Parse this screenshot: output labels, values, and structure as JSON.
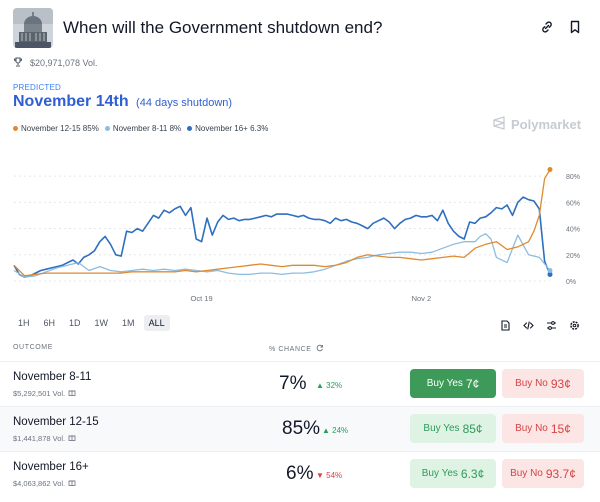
{
  "header": {
    "title": "When will the Government shutdown end?"
  },
  "volume": "$20,971,078 Vol.",
  "prediction": {
    "label": "PREDICTED",
    "value": "November 14th",
    "detail": "(44 days shutdown)"
  },
  "legend": [
    {
      "name": "November 12-15 85%",
      "color": "#e08a2e"
    },
    {
      "name": "November 8-11 8%",
      "color": "#8cbde0"
    },
    {
      "name": "November 16+ 6.3%",
      "color": "#2f6fc0"
    }
  ],
  "brand": "Polymarket",
  "chart_data": {
    "type": "line",
    "x_ticks": [
      "Oct 19",
      "Nov 2"
    ],
    "y_ticks": [
      "80%",
      "60%",
      "40%",
      "20%",
      "0%"
    ],
    "ylim": [
      0,
      90
    ],
    "grid": "horizontal-dashed",
    "series": [
      {
        "name": "November 12-15",
        "color": "#e08a2e",
        "x": [
          0,
          2,
          4,
          6,
          8,
          10,
          12,
          14,
          16,
          18,
          20,
          22,
          24,
          26,
          28,
          30,
          32,
          34,
          36,
          38,
          40,
          42,
          44,
          46,
          48,
          50,
          52,
          54,
          56,
          58,
          60,
          62,
          64,
          66,
          68,
          70,
          72,
          74,
          76,
          78,
          80,
          82,
          84,
          86,
          88,
          90,
          92,
          94,
          96,
          97,
          98,
          99,
          100
        ],
        "y": [
          12,
          4,
          5,
          6,
          6,
          6,
          6,
          6,
          6,
          6,
          6,
          7,
          7,
          7,
          7,
          7,
          8,
          7,
          8,
          9,
          10,
          11,
          12,
          13,
          12,
          11,
          12,
          12,
          12,
          11,
          12,
          14,
          18,
          20,
          19,
          18,
          18,
          17,
          16,
          17,
          18,
          19,
          18,
          25,
          28,
          30,
          24,
          26,
          30,
          38,
          50,
          78,
          85
        ]
      },
      {
        "name": "November 8-11",
        "color": "#8cbde0",
        "x": [
          0,
          2,
          4,
          6,
          8,
          10,
          12,
          14,
          16,
          18,
          20,
          22,
          24,
          26,
          28,
          30,
          32,
          34,
          36,
          38,
          40,
          42,
          44,
          46,
          48,
          50,
          52,
          54,
          56,
          58,
          60,
          62,
          64,
          66,
          68,
          70,
          72,
          74,
          76,
          78,
          80,
          82,
          84,
          86,
          87,
          88,
          89,
          90,
          92,
          94,
          96,
          98,
          100
        ],
        "y": [
          8,
          3,
          4,
          7,
          10,
          12,
          14,
          8,
          11,
          8,
          7,
          8,
          9,
          8,
          9,
          8,
          9,
          8,
          7,
          8,
          6,
          5,
          5,
          6,
          6,
          5,
          6,
          6,
          7,
          9,
          12,
          15,
          17,
          18,
          20,
          21,
          22,
          22,
          21,
          22,
          25,
          28,
          30,
          30,
          34,
          36,
          32,
          18,
          14,
          35,
          20,
          18,
          8
        ]
      },
      {
        "name": "November 16+",
        "color": "#2f6fc0",
        "x": [
          0,
          1,
          2,
          3,
          4,
          5,
          6,
          7,
          8,
          9,
          10,
          11,
          12,
          13,
          14,
          15,
          16,
          17,
          18,
          19,
          20,
          21,
          22,
          23,
          24,
          25,
          26,
          27,
          28,
          29,
          30,
          31,
          32,
          33,
          34,
          35,
          36,
          37,
          38,
          39,
          40,
          41,
          42,
          43,
          44,
          45,
          46,
          47,
          48,
          49,
          50,
          51,
          52,
          53,
          54,
          55,
          56,
          57,
          58,
          59,
          60,
          61,
          62,
          63,
          64,
          65,
          66,
          67,
          68,
          69,
          70,
          71,
          72,
          73,
          74,
          75,
          76,
          77,
          78,
          79,
          80,
          81,
          82,
          83,
          84,
          85,
          86,
          87,
          88,
          89,
          90,
          91,
          92,
          93,
          94,
          95,
          96,
          97,
          98,
          99,
          100
        ],
        "y": [
          12,
          5,
          3,
          4,
          6,
          8,
          9,
          10,
          11,
          12,
          14,
          16,
          13,
          18,
          20,
          23,
          30,
          34,
          28,
          20,
          19,
          38,
          37,
          40,
          38,
          44,
          50,
          48,
          54,
          52,
          55,
          57,
          50,
          56,
          32,
          30,
          48,
          35,
          45,
          50,
          47,
          48,
          46,
          47,
          47,
          48,
          49,
          50,
          49,
          51,
          51,
          51,
          50,
          49,
          50,
          48,
          47,
          47,
          46,
          44,
          48,
          46,
          47,
          45,
          44,
          42,
          40,
          44,
          46,
          48,
          45,
          40,
          44,
          47,
          48,
          50,
          49,
          49,
          50,
          46,
          54,
          44,
          38,
          34,
          32,
          45,
          44,
          48,
          49,
          52,
          56,
          55,
          58,
          50,
          60,
          64,
          62,
          61,
          55,
          15,
          5
        ]
      }
    ]
  },
  "time_ranges": [
    {
      "label": "1H"
    },
    {
      "label": "6H"
    },
    {
      "label": "1D"
    },
    {
      "label": "1W"
    },
    {
      "label": "1M"
    },
    {
      "label": "ALL"
    }
  ],
  "active_range": "ALL",
  "table": {
    "outcome_header": "OUTCOME",
    "chance_header": "% CHANCE",
    "rows": [
      {
        "name": "November 8-11",
        "volume": "$5,292,501 Vol.",
        "chance": "7%",
        "change": "32%",
        "direction": "up",
        "yes_label": "Buy Yes",
        "yes_price": "7¢",
        "no_label": "Buy No",
        "no_price": "93¢"
      },
      {
        "name": "November 12-15",
        "volume": "$1,441,878 Vol.",
        "chance": "85%",
        "change": "24%",
        "direction": "up",
        "yes_label": "Buy Yes",
        "yes_price": "85¢",
        "no_label": "Buy No",
        "no_price": "15¢"
      },
      {
        "name": "November 16+",
        "volume": "$4,063,862 Vol.",
        "chance": "6%",
        "change": "54%",
        "direction": "down",
        "yes_label": "Buy Yes",
        "yes_price": "6.3¢",
        "no_label": "Buy No",
        "no_price": "93.7¢"
      }
    ]
  }
}
